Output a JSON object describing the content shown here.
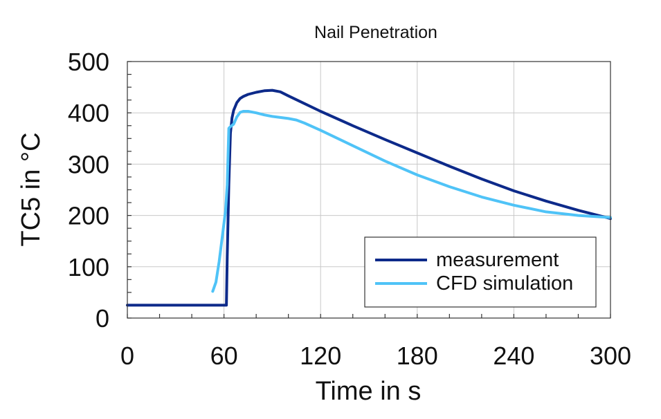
{
  "chart_data": {
    "type": "line",
    "title": "Nail Penetration",
    "xlabel": "Time in s",
    "ylabel": "TC5 in °C",
    "xlim": [
      0,
      300
    ],
    "ylim": [
      0,
      500
    ],
    "xticks": [
      0,
      60,
      120,
      180,
      240,
      300
    ],
    "yticks": [
      0,
      100,
      200,
      300,
      400,
      500
    ],
    "xtick_labels": [
      "0",
      "60",
      "120",
      "180",
      "240",
      "300"
    ],
    "ytick_labels": [
      "0",
      "100",
      "200",
      "300",
      "400",
      "500"
    ],
    "grid": true,
    "legend_position": "bottom-right",
    "series": [
      {
        "name": "measurement",
        "color": "#0d2a8a",
        "x": [
          0,
          61.5,
          62,
          63,
          64,
          65,
          66,
          68,
          70,
          72,
          75,
          80,
          85,
          90,
          95,
          100,
          110,
          120,
          140,
          160,
          180,
          200,
          220,
          240,
          260,
          280,
          300
        ],
        "y": [
          25,
          25,
          120,
          260,
          360,
          390,
          405,
          420,
          428,
          432,
          436,
          440,
          443,
          444,
          441,
          433,
          418,
          403,
          375,
          348,
          322,
          296,
          271,
          248,
          228,
          210,
          194
        ]
      },
      {
        "name": "CFD simulation",
        "color": "#4fc3f7",
        "x": [
          53,
          55,
          57,
          59,
          61,
          62,
          63,
          64,
          66,
          68,
          70,
          72,
          75,
          80,
          85,
          90,
          95,
          100,
          105,
          110,
          120,
          140,
          160,
          180,
          200,
          220,
          240,
          260,
          280,
          300
        ],
        "y": [
          52,
          70,
          110,
          160,
          210,
          260,
          370,
          373,
          378,
          392,
          401,
          403,
          403,
          400,
          396,
          393,
          391,
          389,
          386,
          380,
          366,
          336,
          306,
          279,
          256,
          236,
          220,
          207,
          200,
          196
        ]
      }
    ]
  }
}
